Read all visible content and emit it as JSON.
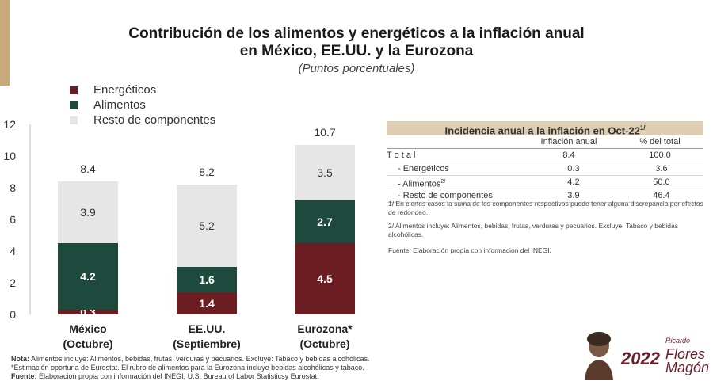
{
  "chart_data": {
    "type": "bar",
    "stacked": true,
    "title": "Contribución de los alimentos y energéticos a la inflación anual",
    "title_line2": "en México, EE.UU. y la Eurozona",
    "subtitle": "(Puntos porcentuales)",
    "categories": [
      {
        "line1": "México",
        "line2": "(Octubre)"
      },
      {
        "line1": "EE.UU.",
        "line2": "(Septiembre)"
      },
      {
        "line1": "Eurozona*",
        "line2": "(Octubre)"
      }
    ],
    "totals": [
      "8.4",
      "8.2",
      "10.7"
    ],
    "series": [
      {
        "name": "Energéticos",
        "color": "#6b1d22",
        "values": [
          0.3,
          1.4,
          4.5
        ],
        "labels": [
          "0.3",
          "1.4",
          "4.5"
        ]
      },
      {
        "name": "Alimentos",
        "color": "#1d4a3c",
        "values": [
          4.2,
          1.6,
          2.7
        ],
        "labels": [
          "4.2",
          "1.6",
          "2.7"
        ]
      },
      {
        "name": "Resto de componentes",
        "color": "#e6e6e6",
        "values": [
          3.9,
          5.2,
          3.5
        ],
        "labels": [
          "3.9",
          "5.2",
          "3.5"
        ]
      }
    ],
    "ylim": [
      0,
      12
    ],
    "yticks": [
      "0",
      "2",
      "4",
      "6",
      "8",
      "10",
      "12"
    ],
    "legend_position": "top-left"
  },
  "table": {
    "title": "Incidencia anual a la inflación en Oct-22",
    "title_note": "1/",
    "columns": [
      "",
      "Inflación anual",
      "% del total"
    ],
    "rows": [
      {
        "label": "T o t a l",
        "inflacion": "8.4",
        "pct": "100.0",
        "note": ""
      },
      {
        "label": "- Energéticos",
        "inflacion": "0.3",
        "pct": "3.6",
        "note": ""
      },
      {
        "label": "- Alimentos",
        "inflacion": "4.2",
        "pct": "50.0",
        "note": "2/"
      },
      {
        "label": "- Resto de componentes",
        "inflacion": "3.9",
        "pct": "46.4",
        "note": ""
      }
    ],
    "notes": [
      "1/ En ciertos casos la suma de los componentes respectivos puede tener alguna discrepancia por efectos de redondeo.",
      "2/ Alimentos incluye: Alimentos, bebidas, frutas, verduras y pecuarios. Excluye: Tabaco y bebidas alcohólicas.",
      "Fuente: Elaboración propia con información del INEGI."
    ]
  },
  "footnotes": {
    "nota_label": "Nota:",
    "nota_text": " Alimentos incluye: Alimentos, bebidas, frutas, verduras y pecuarios. Excluye: Tabaco y bebidas alcohólicas.",
    "estimacion": "*Estimación oportuna de Eurostat. El rubro de alimentos para la Eurozona incluye bebidas alcohólicas y tabaco.",
    "fuente_label": "Fuente:",
    "fuente_text": " Elaboración propia con información del INEGI, U.S. Bureau of Labor Statisticsy Eurostat."
  },
  "logo": {
    "year": "2022",
    "name_line1": "Ricardo",
    "name_line2": "Flores",
    "name_line3": "Magón"
  }
}
